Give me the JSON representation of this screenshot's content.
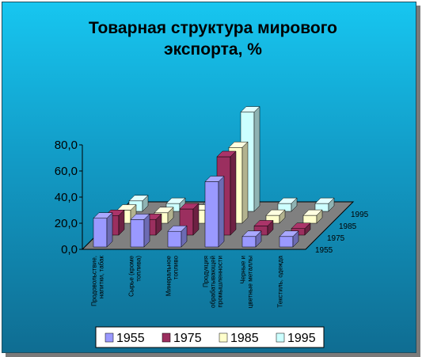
{
  "chart_data": {
    "type": "bar",
    "variant": "3d-clustered-depth",
    "title_lines": [
      "Товарная структура мирового",
      "экспорта, %"
    ],
    "categories": [
      [
        "Продовольствие,",
        "напитки, табак"
      ],
      [
        "Сырье (кроме",
        "топлива)"
      ],
      [
        "Минеральное",
        "топливо"
      ],
      [
        "Продукция",
        "обрабатывающей",
        "промышленности"
      ],
      [
        "Черные и",
        "цветные металлы"
      ],
      [
        "Текстиль, одежда"
      ]
    ],
    "series": [
      {
        "name": "1955",
        "color": "#9a99ff",
        "values": [
          22,
          21,
          12,
          50,
          8,
          8
        ]
      },
      {
        "name": "1975",
        "color": "#9b2f5f",
        "values": [
          15,
          12,
          20,
          60,
          7,
          5
        ]
      },
      {
        "name": "1985",
        "color": "#ffffcc",
        "values": [
          10,
          8,
          10,
          58,
          6,
          6
        ]
      },
      {
        "name": "1995",
        "color": "#ccffff",
        "values": [
          8,
          6,
          6,
          76,
          6,
          6
        ]
      }
    ],
    "yticks": [
      "0,0",
      "20,0",
      "40,0",
      "60,0",
      "80,0"
    ],
    "ylim": [
      0,
      80
    ],
    "depth_labels": [
      "1955",
      "1975",
      "1985",
      "1995"
    ],
    "legend_position": "bottom"
  }
}
